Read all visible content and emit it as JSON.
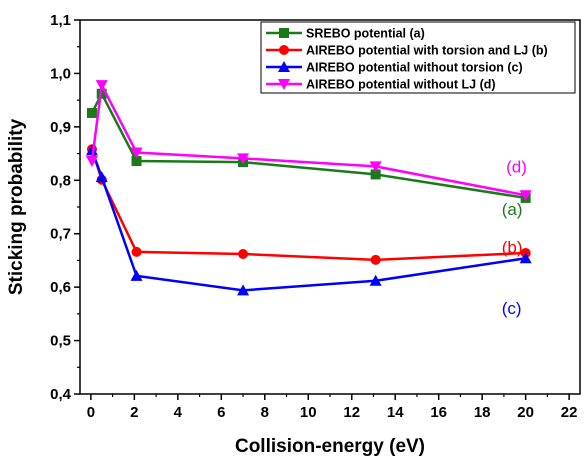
{
  "chart_data": {
    "type": "line",
    "xlabel": "Collision-energy (eV)",
    "ylabel": "Sticking probability",
    "xlim": [
      -0.5,
      22.5
    ],
    "ylim": [
      0.4,
      1.1
    ],
    "xticks": [
      0,
      2,
      4,
      6,
      8,
      10,
      12,
      14,
      16,
      18,
      20,
      22
    ],
    "xtick_labels": [
      "0",
      "2",
      "4",
      "6",
      "8",
      "10",
      "12",
      "14",
      "16",
      "18",
      "20",
      "22"
    ],
    "yticks": [
      0.4,
      0.5,
      0.6,
      0.7,
      0.8,
      0.9,
      1.0,
      1.1
    ],
    "ytick_labels": [
      "0,4",
      "0,5",
      "0,6",
      "0,7",
      "0,8",
      "0,9",
      "1,0",
      "1,1"
    ],
    "grid": false,
    "legend_position": "top-right",
    "series": [
      {
        "name": "SREBO potential (a)",
        "color": "#1a7a1a",
        "marker": "square",
        "x": [
          0.05,
          0.5,
          2.1,
          7.0,
          13.1,
          20.0
        ],
        "y": [
          0.926,
          0.962,
          0.836,
          0.834,
          0.811,
          0.767
        ]
      },
      {
        "name": "AIREBO potential with torsion and LJ (b)",
        "color": "#ff0000",
        "marker": "circle",
        "x": [
          0.05,
          0.5,
          2.1,
          7.0,
          13.1,
          20.0
        ],
        "y": [
          0.858,
          0.801,
          0.666,
          0.662,
          0.651,
          0.664
        ]
      },
      {
        "name": "AIREBO potential without torsion (c)",
        "color": "#0000ff",
        "marker": "triangle-up",
        "x": [
          0.05,
          0.5,
          2.1,
          7.0,
          13.1,
          20.0
        ],
        "y": [
          0.856,
          0.806,
          0.621,
          0.594,
          0.612,
          0.654
        ]
      },
      {
        "name": "AIREBO potential without LJ (d)",
        "color": "#ff00ff",
        "marker": "triangle-down",
        "x": [
          0.05,
          0.5,
          2.1,
          7.0,
          13.1,
          20.0
        ],
        "y": [
          0.836,
          0.978,
          0.852,
          0.841,
          0.826,
          0.772
        ]
      }
    ],
    "annotations": [
      {
        "text": "(d)",
        "x": 19.1,
        "y": 0.815,
        "color": "#ff00ff"
      },
      {
        "text": "(a)",
        "x": 18.9,
        "y": 0.735,
        "color": "#1a7a1a"
      },
      {
        "text": "(b)",
        "x": 18.9,
        "y": 0.664,
        "color": "#ff0000"
      },
      {
        "text": "(c)",
        "x": 18.9,
        "y": 0.55,
        "color": "#0000ff"
      }
    ]
  }
}
